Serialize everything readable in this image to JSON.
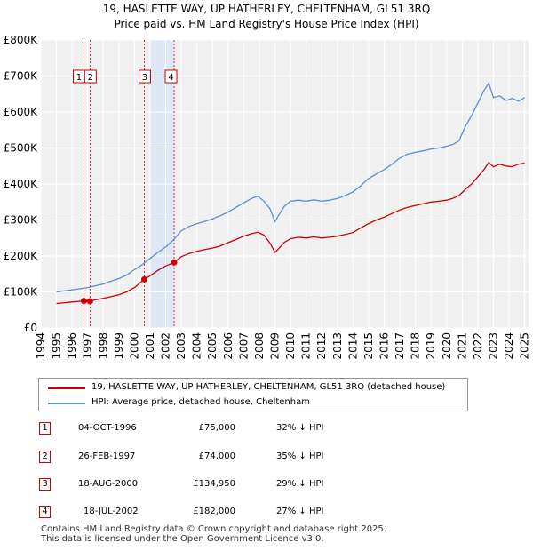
{
  "chart_data": {
    "type": "line",
    "title": "19, HASLETTE WAY, UP HATHERLEY, CHELTENHAM, GL51 3RQ",
    "subtitle": "Price paid vs. HM Land Registry's House Price Index (HPI)",
    "xlim": [
      1994,
      2025.25
    ],
    "ylim": [
      0,
      800000
    ],
    "x_ticks": [
      1994,
      1995,
      1996,
      1997,
      1998,
      1999,
      2000,
      2001,
      2002,
      2003,
      2004,
      2005,
      2006,
      2007,
      2008,
      2009,
      2010,
      2011,
      2012,
      2013,
      2014,
      2015,
      2016,
      2017,
      2018,
      2019,
      2020,
      2021,
      2022,
      2023,
      2024,
      2025
    ],
    "y_ticks": [
      0,
      100000,
      200000,
      300000,
      400000,
      500000,
      600000,
      700000,
      800000
    ],
    "y_tick_labels": [
      "£0",
      "£100K",
      "£200K",
      "£300K",
      "£400K",
      "£500K",
      "£600K",
      "£700K",
      "£800K"
    ],
    "grid": true,
    "shaded_period": [
      2001.0,
      2002.54
    ],
    "series": [
      {
        "name": "19, HASLETTE WAY, UP HATHERLEY, CHELTENHAM, GL51 3RQ (detached house)",
        "color": "#cc0000",
        "x": [
          1995,
          1995.5,
          1996,
          1996.5,
          1996.75,
          1997.15,
          1997.5,
          1998,
          1998.5,
          1999,
          1999.5,
          2000,
          2000.63,
          2001,
          2001.5,
          2002,
          2002.54,
          2003,
          2003.5,
          2004,
          2004.5,
          2005,
          2005.5,
          2006,
          2006.5,
          2007,
          2007.5,
          2007.9,
          2008.3,
          2008.7,
          2009.0,
          2009.2,
          2009.6,
          2010,
          2010.5,
          2011,
          2011.5,
          2012,
          2012.5,
          2013,
          2013.5,
          2014,
          2014.5,
          2015,
          2015.5,
          2016,
          2016.5,
          2017,
          2017.5,
          2018,
          2018.5,
          2019,
          2019.5,
          2020,
          2020.4,
          2020.8,
          2021.2,
          2021.6,
          2022,
          2022.4,
          2022.7,
          2023,
          2023.4,
          2023.8,
          2024.2,
          2024.6,
          2025.0
        ],
        "y": [
          68000,
          70000,
          72000,
          74000,
          75000,
          74000,
          78000,
          82000,
          87000,
          92000,
          100000,
          112000,
          134950,
          145000,
          160000,
          172000,
          182000,
          198000,
          207000,
          213000,
          218000,
          222000,
          228000,
          237000,
          246000,
          255000,
          262000,
          266000,
          258000,
          235000,
          210000,
          218000,
          238000,
          248000,
          252000,
          250000,
          253000,
          250000,
          252000,
          255000,
          260000,
          265000,
          278000,
          290000,
          300000,
          308000,
          318000,
          328000,
          335000,
          340000,
          345000,
          350000,
          352000,
          355000,
          360000,
          368000,
          385000,
          400000,
          420000,
          440000,
          460000,
          448000,
          455000,
          450000,
          448000,
          455000,
          458000
        ]
      },
      {
        "name": "HPI: Average price, detached house, Cheltenham",
        "color": "#5b8fd4",
        "x": [
          1995,
          1995.5,
          1996,
          1996.5,
          1997,
          1997.5,
          1998,
          1998.5,
          1999,
          1999.5,
          2000,
          2000.5,
          2001,
          2001.5,
          2002,
          2002.5,
          2003,
          2003.5,
          2004,
          2004.5,
          2005,
          2005.5,
          2006,
          2006.5,
          2007,
          2007.5,
          2007.9,
          2008.3,
          2008.7,
          2009.0,
          2009.2,
          2009.6,
          2010,
          2010.5,
          2011,
          2011.5,
          2012,
          2012.5,
          2013,
          2013.5,
          2014,
          2014.5,
          2015,
          2015.5,
          2016,
          2016.5,
          2017,
          2017.5,
          2018,
          2018.5,
          2019,
          2019.5,
          2020,
          2020.4,
          2020.8,
          2021.2,
          2021.6,
          2022,
          2022.4,
          2022.7,
          2023,
          2023.4,
          2023.8,
          2024.2,
          2024.6,
          2025.0
        ],
        "y": [
          100000,
          103000,
          106000,
          109000,
          112000,
          117000,
          122000,
          130000,
          137000,
          147000,
          162000,
          176000,
          193000,
          210000,
          225000,
          245000,
          270000,
          282000,
          290000,
          296000,
          303000,
          312000,
          322000,
          335000,
          348000,
          360000,
          366000,
          352000,
          330000,
          295000,
          310000,
          338000,
          352000,
          355000,
          352000,
          356000,
          352000,
          355000,
          360000,
          368000,
          378000,
          395000,
          415000,
          428000,
          440000,
          455000,
          472000,
          483000,
          488000,
          492000,
          497000,
          500000,
          505000,
          510000,
          520000,
          560000,
          590000,
          625000,
          660000,
          680000,
          640000,
          645000,
          632000,
          638000,
          630000,
          640000
        ]
      }
    ],
    "sales": [
      {
        "label": "1",
        "date": "04-OCT-1996",
        "x": 1996.76,
        "price": 75000,
        "price_text": "£75,000",
        "hpi_delta": "32% ↓ HPI"
      },
      {
        "label": "2",
        "date": "26-FEB-1997",
        "x": 1997.15,
        "price": 74000,
        "price_text": "£74,000",
        "hpi_delta": "35% ↓ HPI"
      },
      {
        "label": "3",
        "date": "18-AUG-2000",
        "x": 2000.63,
        "price": 134950,
        "price_text": "£134,950",
        "hpi_delta": "29% ↓ HPI"
      },
      {
        "label": "4",
        "date": "18-JUL-2002",
        "x": 2002.54,
        "price": 182000,
        "price_text": "£182,000",
        "hpi_delta": "27% ↓ HPI"
      }
    ]
  },
  "legend": {
    "property_label": "19, HASLETTE WAY, UP HATHERLEY, CHELTENHAM, GL51 3RQ (detached house)",
    "hpi_label": "HPI: Average price, detached house, Cheltenham",
    "property_color": "#cc0000",
    "hpi_color": "#5b8fd4"
  },
  "footer": {
    "line1": "Contains HM Land Registry data © Crown copyright and database right 2025.",
    "line2": "This data is licensed under the Open Government Licence v3.0."
  }
}
